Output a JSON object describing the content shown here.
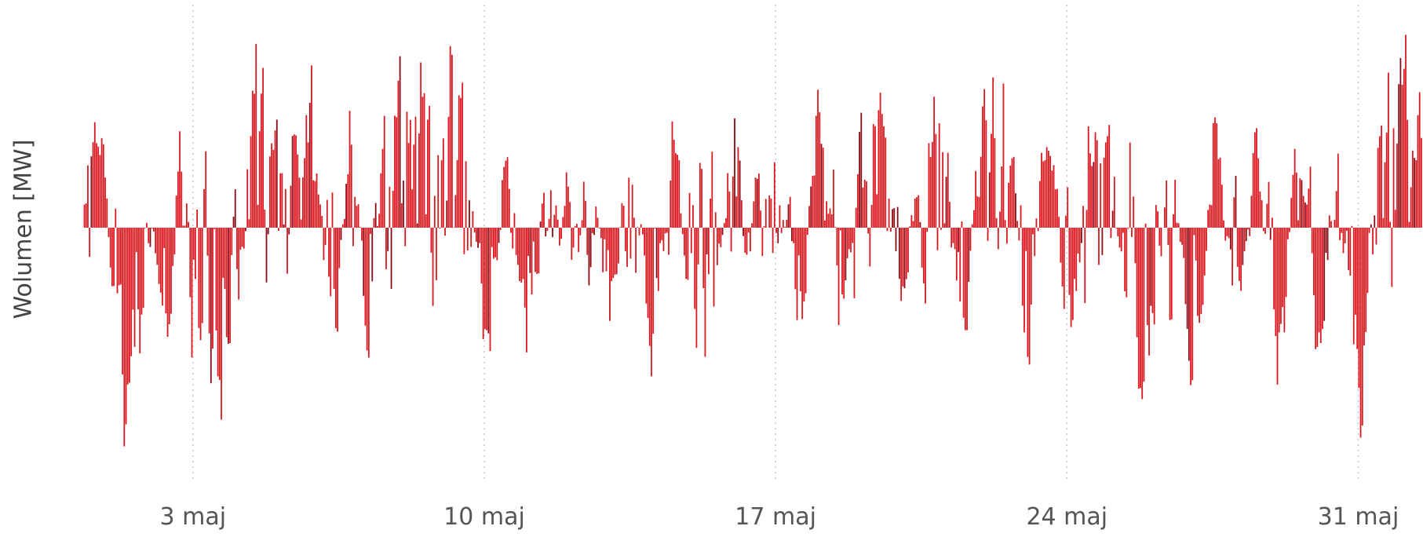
{
  "chart_data": {
    "type": "bar",
    "title": "",
    "xlabel": "",
    "ylabel": "Wolumen [MW]",
    "x_range": [
      "2024-04-30T06:00",
      "2024-06-01T12:00"
    ],
    "x_ticks": [
      {
        "date": "2024-05-03",
        "label": "3 maj"
      },
      {
        "date": "2024-05-10",
        "label": "10 maj"
      },
      {
        "date": "2024-05-17",
        "label": "17 maj"
      },
      {
        "date": "2024-05-24",
        "label": "24 maj"
      },
      {
        "date": "2024-05-31",
        "label": "31 maj"
      }
    ],
    "y_range": [
      -900,
      900
    ],
    "grid": {
      "vertical": true,
      "horizontal": false,
      "style": "dotted"
    },
    "legend": "none",
    "colors": {
      "bar": "#d91920",
      "bar_dark": "#8b0c15",
      "grid": "#c8c8c8",
      "axis_text": "#555555"
    },
    "series": [
      {
        "resolution": "hourly",
        "start": "2024-04-30T09:00",
        "note_on_values": "approximate hourly volumes read from the chart, compressed as a smooth envelope",
        "envelope": [
          {
            "t": "2024-04-30T09:00",
            "v": 150
          },
          {
            "t": "2024-04-30T14:00",
            "v": 620
          },
          {
            "t": "2024-04-30T20:00",
            "v": 450
          },
          {
            "t": "2024-05-01T02:00",
            "v": -450
          },
          {
            "t": "2024-05-01T08:00",
            "v": -800
          },
          {
            "t": "2024-05-01T16:00",
            "v": -520
          },
          {
            "t": "2024-05-02T00:00",
            "v": 180
          },
          {
            "t": "2024-05-02T08:00",
            "v": -620
          },
          {
            "t": "2024-05-02T16:00",
            "v": 420
          },
          {
            "t": "2024-05-03T00:00",
            "v": -700
          },
          {
            "t": "2024-05-03T12:00",
            "v": -690
          },
          {
            "t": "2024-05-04T00:00",
            "v": -480
          },
          {
            "t": "2024-05-04T10:00",
            "v": 860
          },
          {
            "t": "2024-05-04T20:00",
            "v": 450
          },
          {
            "t": "2024-05-05T08:00",
            "v": 380
          },
          {
            "t": "2024-05-05T20:00",
            "v": 680
          },
          {
            "t": "2024-05-06T08:00",
            "v": -720
          },
          {
            "t": "2024-05-06T18:00",
            "v": 560
          },
          {
            "t": "2024-05-07T06:00",
            "v": -840
          },
          {
            "t": "2024-05-07T14:00",
            "v": 880
          },
          {
            "t": "2024-05-08T00:00",
            "v": 840
          },
          {
            "t": "2024-05-08T12:00",
            "v": 900
          },
          {
            "t": "2024-05-09T00:00",
            "v": 720
          },
          {
            "t": "2024-05-09T12:00",
            "v": 780
          },
          {
            "t": "2024-05-10T00:00",
            "v": -650
          },
          {
            "t": "2024-05-10T12:00",
            "v": 450
          },
          {
            "t": "2024-05-11T00:00",
            "v": -760
          },
          {
            "t": "2024-05-11T12:00",
            "v": 290
          },
          {
            "t": "2024-05-12T00:00",
            "v": -350
          },
          {
            "t": "2024-05-12T12:00",
            "v": 420
          },
          {
            "t": "2024-05-13T00:00",
            "v": -500
          },
          {
            "t": "2024-05-13T12:00",
            "v": 650
          },
          {
            "t": "2024-05-14T00:00",
            "v": -680
          },
          {
            "t": "2024-05-14T12:00",
            "v": 580
          },
          {
            "t": "2024-05-15T00:00",
            "v": -700
          },
          {
            "t": "2024-05-15T12:00",
            "v": -660
          },
          {
            "t": "2024-05-16T00:00",
            "v": 690
          },
          {
            "t": "2024-05-16T12:00",
            "v": -600
          },
          {
            "t": "2024-05-17T00:00",
            "v": 700
          },
          {
            "t": "2024-05-17T12:00",
            "v": -620
          },
          {
            "t": "2024-05-18T00:00",
            "v": 620
          },
          {
            "t": "2024-05-18T12:00",
            "v": -560
          },
          {
            "t": "2024-05-19T00:00",
            "v": 580
          },
          {
            "t": "2024-05-19T12:00",
            "v": 700
          },
          {
            "t": "2024-05-20T00:00",
            "v": -620
          },
          {
            "t": "2024-05-20T12:00",
            "v": 600
          },
          {
            "t": "2024-05-21T00:00",
            "v": 720
          },
          {
            "t": "2024-05-21T12:00",
            "v": -580
          },
          {
            "t": "2024-05-22T00:00",
            "v": 770
          },
          {
            "t": "2024-05-22T12:00",
            "v": 760
          },
          {
            "t": "2024-05-23T00:00",
            "v": -680
          },
          {
            "t": "2024-05-23T12:00",
            "v": 780
          },
          {
            "t": "2024-05-24T00:00",
            "v": -720
          },
          {
            "t": "2024-05-24T12:00",
            "v": 700
          },
          {
            "t": "2024-05-25T00:00",
            "v": 650
          },
          {
            "t": "2024-05-25T12:00",
            "v": -560
          },
          {
            "t": "2024-05-26T00:00",
            "v": -740
          },
          {
            "t": "2024-05-26T12:00",
            "v": 680
          },
          {
            "t": "2024-05-27T00:00",
            "v": -850
          },
          {
            "t": "2024-05-27T12:00",
            "v": 600
          },
          {
            "t": "2024-05-28T00:00",
            "v": -680
          },
          {
            "t": "2024-05-28T12:00",
            "v": 580
          },
          {
            "t": "2024-05-29T00:00",
            "v": -860
          },
          {
            "t": "2024-05-29T12:00",
            "v": 560
          },
          {
            "t": "2024-05-30T00:00",
            "v": -720
          },
          {
            "t": "2024-05-30T12:00",
            "v": 590
          },
          {
            "t": "2024-05-31T00:00",
            "v": -980
          },
          {
            "t": "2024-05-31T12:00",
            "v": 780
          },
          {
            "t": "2024-06-01T00:00",
            "v": 860
          },
          {
            "t": "2024-06-01T12:00",
            "v": 520
          }
        ]
      }
    ]
  }
}
